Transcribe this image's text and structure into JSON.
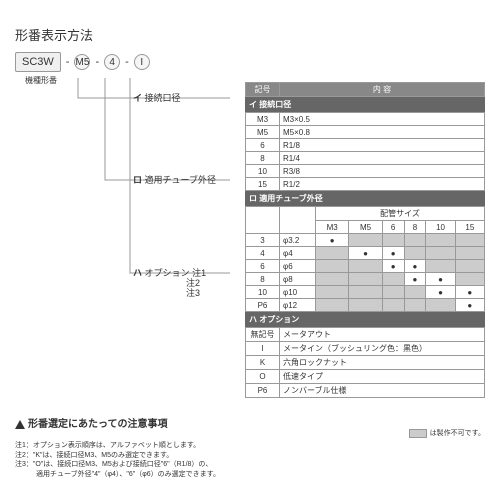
{
  "title": "形番表示方法",
  "model": {
    "base": "SC3W",
    "p1": "M5",
    "p2": "4",
    "p3": "I",
    "sub": "機種形番"
  },
  "markers": {
    "a": "イ",
    "b": "ロ",
    "c": "ハ"
  },
  "labels": {
    "a": "接続口径",
    "b": "適用チューブ外径",
    "c": "オプション",
    "note1": "注1",
    "note2": "注2",
    "note3": "注3"
  },
  "hdr": {
    "sym": "記号",
    "content": "内 容",
    "pipe": "配管サイズ"
  },
  "sectA": {
    "title": "接続口径",
    "rows": [
      [
        "M3",
        "M3×0.5"
      ],
      [
        "M5",
        "M5×0.8"
      ],
      [
        "6",
        "R1/8"
      ],
      [
        "8",
        "R1/4"
      ],
      [
        "10",
        "R3/8"
      ],
      [
        "15",
        "R1/2"
      ]
    ]
  },
  "sectB": {
    "title": "適用チューブ外径",
    "cols": [
      "M3",
      "M5",
      "6",
      "8",
      "10",
      "15"
    ],
    "rows": [
      {
        "k": "3",
        "v": "φ3.2",
        "d": [
          1,
          0,
          0,
          0,
          0,
          0
        ]
      },
      {
        "k": "4",
        "v": "φ4",
        "d": [
          0,
          1,
          1,
          0,
          0,
          0
        ]
      },
      {
        "k": "6",
        "v": "φ6",
        "d": [
          0,
          0,
          1,
          1,
          0,
          0
        ]
      },
      {
        "k": "8",
        "v": "φ8",
        "d": [
          0,
          0,
          0,
          1,
          1,
          0
        ]
      },
      {
        "k": "10",
        "v": "φ10",
        "d": [
          0,
          0,
          0,
          0,
          1,
          1
        ]
      },
      {
        "k": "P6",
        "v": "φ12",
        "d": [
          0,
          0,
          0,
          0,
          0,
          1
        ]
      }
    ]
  },
  "sectC": {
    "title": "オプション",
    "rows": [
      [
        "無記号",
        "メータアウト"
      ],
      [
        "I",
        "メータイン（ブッシュリング色：黒色）"
      ],
      [
        "K",
        "六角ロックナット"
      ],
      [
        "O",
        "低速タイプ"
      ],
      [
        "P6",
        "ノンバーブル仕様"
      ]
    ]
  },
  "legend": "は製作不可です。",
  "caution": "形番選定にあたっての注意事項",
  "notes": [
    "注1：オプション表示順序は、アルファベット順とします。",
    "注2：\"K\"は、接続口径M3、M5のみ選定できます。",
    "注3：\"O\"は、接続口径M3、M5および接続口径\"6\"（R1/8）の、",
    "　　　適用チューブ外径\"4\"（φ4）、\"6\"（φ6）のみ選定できます。"
  ]
}
